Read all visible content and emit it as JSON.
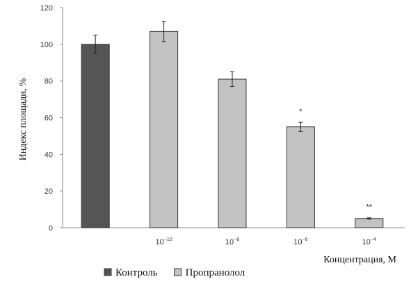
{
  "chart_data": {
    "type": "bar",
    "ylabel": "Индекс площади, %",
    "xlabel": "Концентрация, М",
    "ylim": [
      0,
      120
    ],
    "yticks": [
      0,
      20,
      40,
      60,
      80,
      100,
      120
    ],
    "grid": false,
    "legend_position": "bottom",
    "series": [
      {
        "name": "Контроль",
        "color": "#555555"
      },
      {
        "name": "Пропранолол",
        "color": "#c3c3c3"
      }
    ],
    "bars": [
      {
        "category": "",
        "base": "",
        "exp": "",
        "series": "Контроль",
        "value": 100,
        "error": 5,
        "significance": ""
      },
      {
        "category": "10^-10",
        "base": "10",
        "exp": "−10",
        "series": "Пропранолол",
        "value": 107,
        "error": 5.5,
        "significance": ""
      },
      {
        "category": "10^-8",
        "base": "10",
        "exp": "−8",
        "series": "Пропранолол",
        "value": 81,
        "error": 4,
        "significance": ""
      },
      {
        "category": "10^-6",
        "base": "10",
        "exp": "−6",
        "series": "Пропранолол",
        "value": 55,
        "error": 2.5,
        "significance": "*"
      },
      {
        "category": "10^-4",
        "base": "10",
        "exp": "−4",
        "series": "Пропранолол",
        "value": 5,
        "error": 0.4,
        "significance": "**"
      }
    ]
  }
}
